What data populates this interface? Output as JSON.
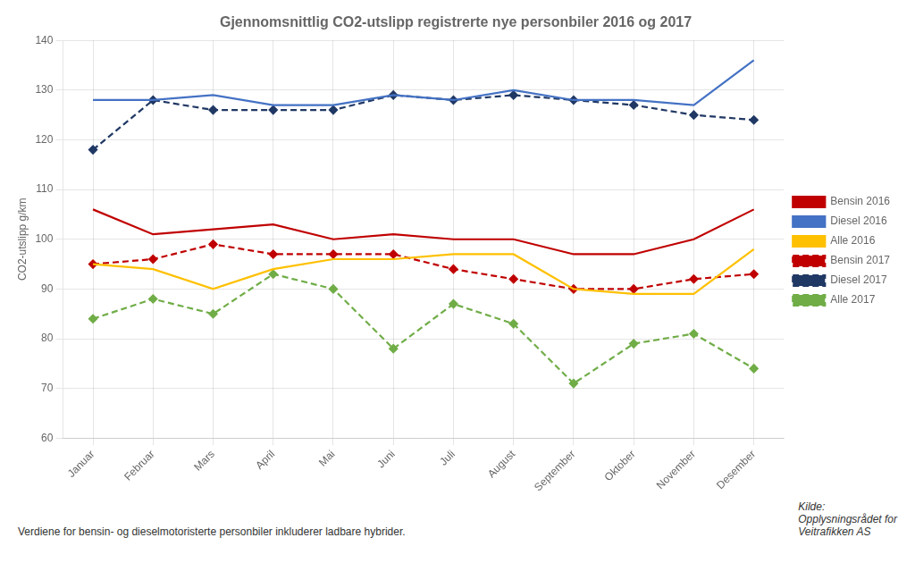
{
  "chart_data": {
    "type": "line",
    "title": "Gjennomsnittlig CO2-utslipp registrerte nye personbiler 2016 og 2017",
    "subtitle": "Verdiene for bensin- og dieselmotoristerte personbiler inkluderer ladbare hybrider.",
    "source": "Kilde:\nOpplysningsrådet for\nVeitrafikken AS",
    "y_label": "CO2-utslipp g/km",
    "categories": [
      "Januar",
      "Februar",
      "Mars",
      "April",
      "Mai",
      "Juni",
      "Juli",
      "August",
      "September",
      "Oktober",
      "November",
      "Desember"
    ],
    "series": [
      {
        "name": "Bensin 2016",
        "color": "#C00000",
        "line_style": "solid",
        "marker": "none",
        "values": [
          106,
          101,
          102,
          103,
          100,
          101,
          100,
          100,
          97,
          97,
          100,
          106
        ]
      },
      {
        "name": "Diesel 2016",
        "color": "#4472C4",
        "line_style": "solid",
        "marker": "none",
        "values": [
          128,
          128,
          129,
          127,
          127,
          129,
          128,
          130,
          128,
          128,
          127,
          136
        ]
      },
      {
        "name": "Alle 2016",
        "color": "#FFC000",
        "line_style": "solid",
        "marker": "none",
        "values": [
          95,
          94,
          90,
          94,
          96,
          96,
          97,
          97,
          90,
          89,
          89,
          98
        ]
      },
      {
        "name": "Bensin 2017",
        "color": "#C00000",
        "line_style": "dashed",
        "marker": "diamond",
        "values": [
          95,
          96,
          99,
          97,
          97,
          97,
          94,
          92,
          90,
          90,
          92,
          93
        ]
      },
      {
        "name": "Diesel 2017",
        "color": "#203864",
        "line_style": "dashed",
        "marker": "diamond",
        "values": [
          118,
          128,
          126,
          126,
          126,
          129,
          128,
          129,
          128,
          127,
          125,
          124
        ]
      },
      {
        "name": "Alle 2017",
        "color": "#70AD47",
        "line_style": "dashed",
        "marker": "diamond",
        "values": [
          84,
          88,
          85,
          93,
          90,
          78,
          87,
          83,
          71,
          79,
          81,
          74
        ]
      }
    ],
    "ylim": [
      60,
      140
    ],
    "yticks": [
      60,
      70,
      80,
      90,
      100,
      110,
      120,
      130,
      140
    ],
    "grid": true,
    "legend": "right"
  }
}
